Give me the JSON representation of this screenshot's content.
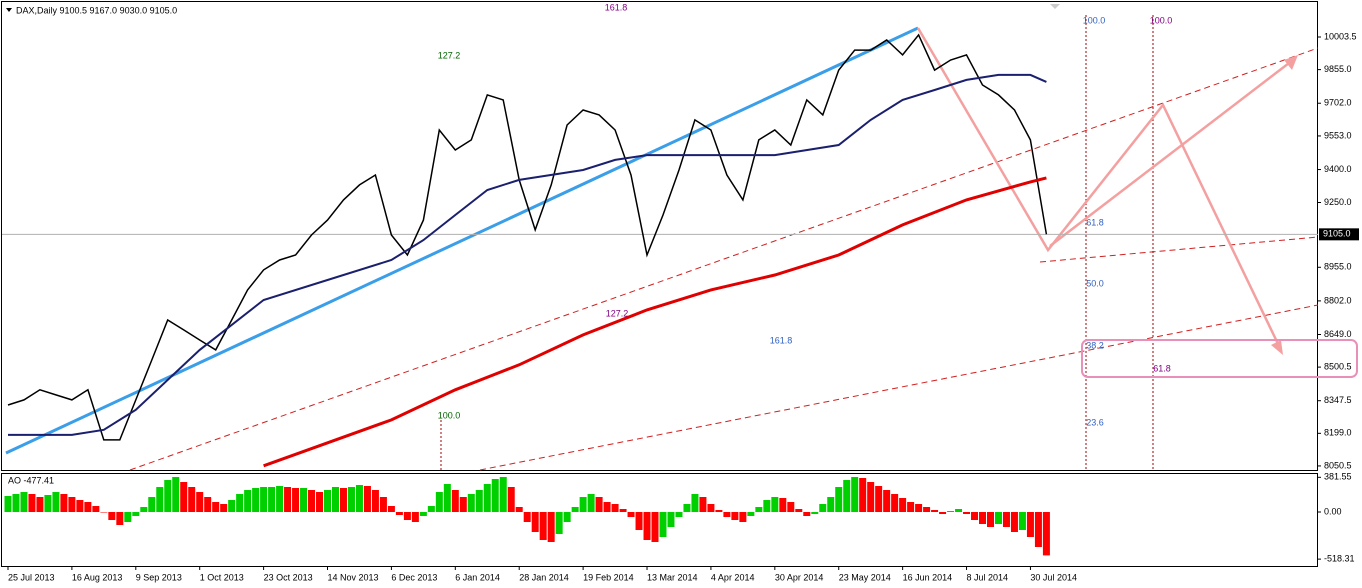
{
  "chart_data": [
    {
      "type": "line",
      "title": "DAX,Daily  9100.5 9167.0 9030.0 9105.0",
      "xlim": [
        -1.5,
        328
      ],
      "ylim": [
        8032,
        10172
      ],
      "xticks": [
        {
          "value": 0,
          "label": "25 Jul 2013"
        },
        {
          "value": 16,
          "label": "16 Aug 2013"
        },
        {
          "value": 32,
          "label": "9 Sep 2013"
        },
        {
          "value": 48,
          "label": "1 Oct 2013"
        },
        {
          "value": 64,
          "label": "23 Oct 2013"
        },
        {
          "value": 80,
          "label": "14 Nov 2013"
        },
        {
          "value": 96,
          "label": "6 Dec 2013"
        },
        {
          "value": 112,
          "label": "6 Jan 2014"
        },
        {
          "value": 128,
          "label": "28 Jan 2014"
        },
        {
          "value": 144,
          "label": "19 Feb 2014"
        },
        {
          "value": 160,
          "label": "13 Mar 2014"
        },
        {
          "value": 176,
          "label": "4 Apr 2014"
        },
        {
          "value": 192,
          "label": "30 Apr 2014"
        },
        {
          "value": 208,
          "label": "23 May 2014"
        },
        {
          "value": 224,
          "label": "16 Jun 2014"
        },
        {
          "value": 240,
          "label": "8 Jul 2014"
        },
        {
          "value": 256,
          "label": "30 Jul 2014"
        }
      ],
      "yticks": [
        {
          "value": 10003.5,
          "label": "10003.5"
        },
        {
          "value": 9855.0,
          "label": "9855.0"
        },
        {
          "value": 9702.0,
          "label": "9702.0"
        },
        {
          "value": 9553.0,
          "label": "9553.0"
        },
        {
          "value": 9400.0,
          "label": "9400.0"
        },
        {
          "value": 9250.0,
          "label": "9250.0"
        },
        {
          "value": 8955.0,
          "label": "8955.0"
        },
        {
          "value": 8802.0,
          "label": "8802.0"
        },
        {
          "value": 8649.0,
          "label": "8649.0"
        },
        {
          "value": 8500.5,
          "label": "8500.5"
        },
        {
          "value": 8347.5,
          "label": "8347.5"
        },
        {
          "value": 8199.0,
          "label": "8199.0"
        },
        {
          "value": 8050.5,
          "label": "8050.5"
        }
      ],
      "price_label": {
        "value": 9105.0,
        "label": "9105.0"
      },
      "grid": false,
      "series": [
        {
          "color": "#000000",
          "x": [
            0,
            4,
            8,
            12,
            16,
            20,
            24,
            28,
            32,
            36,
            40,
            44,
            48,
            52,
            56,
            60,
            64,
            68,
            72,
            76,
            80,
            84,
            88,
            92,
            96,
            100,
            104,
            108,
            112,
            116,
            120,
            124,
            128,
            132,
            136,
            140,
            144,
            148,
            152,
            156,
            160,
            164,
            168,
            172,
            176,
            180,
            184,
            188,
            192,
            196,
            200,
            204,
            208,
            212,
            216,
            220,
            224,
            228,
            232,
            236,
            240,
            244,
            248,
            252,
            256,
            260
          ],
          "values": [
            8328,
            8351,
            8397,
            8374,
            8351,
            8397,
            8169,
            8169,
            8351,
            8533,
            8715,
            8670,
            8624,
            8579,
            8715,
            8852,
            8943,
            8988,
            9011,
            9102,
            9170,
            9262,
            9330,
            9375,
            9102,
            9011,
            9170,
            9580,
            9489,
            9535,
            9740,
            9717,
            9353,
            9125,
            9330,
            9603,
            9671,
            9649,
            9580,
            9375,
            9011,
            9193,
            9398,
            9626,
            9580,
            9375,
            9262,
            9535,
            9580,
            9512,
            9717,
            9649,
            9853,
            9944,
            9944,
            9990,
            9922,
            10013,
            9853,
            9899,
            9922,
            9785,
            9740,
            9671,
            9535,
            9105
          ]
        },
        {
          "color": "#1a1f6e",
          "x": [
            0,
            16,
            24,
            32,
            48,
            64,
            80,
            96,
            104,
            112,
            120,
            128,
            144,
            152,
            160,
            176,
            192,
            208,
            216,
            224,
            232,
            240,
            248,
            256,
            260
          ],
          "values": [
            8192,
            8192,
            8215,
            8306,
            8579,
            8806,
            8897,
            8988,
            9079,
            9193,
            9307,
            9353,
            9398,
            9444,
            9466,
            9466,
            9466,
            9512,
            9626,
            9717,
            9762,
            9808,
            9831,
            9831,
            9799
          ]
        },
        {
          "color": "#e00000",
          "x": [
            64,
            96,
            112,
            128,
            144,
            160,
            176,
            192,
            208,
            224,
            240,
            256,
            260
          ],
          "values": [
            8051,
            8260,
            8397,
            8511,
            8647,
            8761,
            8852,
            8920,
            9011,
            9148,
            9262,
            9344,
            9362
          ]
        }
      ],
      "annotations": [
        "161.8",
        "127.2",
        "127.2",
        "100.0",
        "161.8",
        "100.0",
        "100.0",
        "61.8",
        "50.0",
        "38.2",
        "61.8",
        "23.6"
      ]
    },
    {
      "type": "bar",
      "title": "AO -477.41",
      "ylim": [
        -594,
        418
      ],
      "yticks": [
        381.55,
        {
          "value": 0,
          "label": "0.00"
        },
        -518.31
      ],
      "up_color": "#00d000",
      "down_color": "#ff0000",
      "x": [
        0,
        2,
        4,
        6,
        8,
        10,
        12,
        14,
        16,
        18,
        20,
        22,
        24,
        26,
        28,
        30,
        32,
        34,
        36,
        38,
        40,
        42,
        44,
        46,
        48,
        50,
        52,
        54,
        56,
        58,
        60,
        62,
        64,
        66,
        68,
        70,
        72,
        74,
        76,
        78,
        80,
        82,
        84,
        86,
        88,
        90,
        92,
        94,
        96,
        98,
        100,
        102,
        104,
        106,
        108,
        110,
        112,
        114,
        116,
        118,
        120,
        122,
        124,
        126,
        128,
        130,
        132,
        134,
        136,
        138,
        140,
        142,
        144,
        146,
        148,
        150,
        152,
        154,
        156,
        158,
        160,
        162,
        164,
        166,
        168,
        170,
        172,
        174,
        176,
        178,
        180,
        182,
        184,
        186,
        188,
        190,
        192,
        194,
        196,
        198,
        200,
        202,
        204,
        206,
        208,
        210,
        212,
        214,
        216,
        218,
        220,
        222,
        224,
        226,
        228,
        230,
        232,
        234,
        236,
        238,
        240,
        242,
        244,
        246,
        248,
        250,
        252,
        254,
        256,
        258,
        260
      ],
      "values": [
        176,
        198,
        220,
        198,
        165,
        187,
        220,
        198,
        165,
        132,
        110,
        66,
        0,
        -88,
        -143,
        -110,
        -44,
        55,
        165,
        275,
        352,
        385,
        330,
        275,
        220,
        165,
        110,
        88,
        132,
        198,
        242,
        264,
        275,
        275,
        286,
        275,
        264,
        264,
        242,
        220,
        242,
        275,
        264,
        275,
        297,
        286,
        242,
        165,
        66,
        -33,
        -88,
        -110,
        -44,
        66,
        220,
        308,
        242,
        165,
        198,
        242,
        308,
        363,
        385,
        275,
        55,
        -110,
        -220,
        -308,
        -330,
        -242,
        -110,
        55,
        165,
        198,
        165,
        110,
        88,
        33,
        -55,
        -198,
        -308,
        -330,
        -275,
        -165,
        -55,
        88,
        198,
        165,
        88,
        22,
        -55,
        -88,
        -110,
        -44,
        55,
        132,
        165,
        154,
        110,
        33,
        -44,
        -22,
        88,
        165,
        275,
        352,
        385,
        374,
        330,
        286,
        242,
        198,
        154,
        110,
        88,
        55,
        22,
        -22,
        11,
        33,
        -22,
        -88,
        -132,
        -165,
        -132,
        -165,
        -220,
        -198,
        -275,
        -385,
        -477.41
      ]
    }
  ]
}
